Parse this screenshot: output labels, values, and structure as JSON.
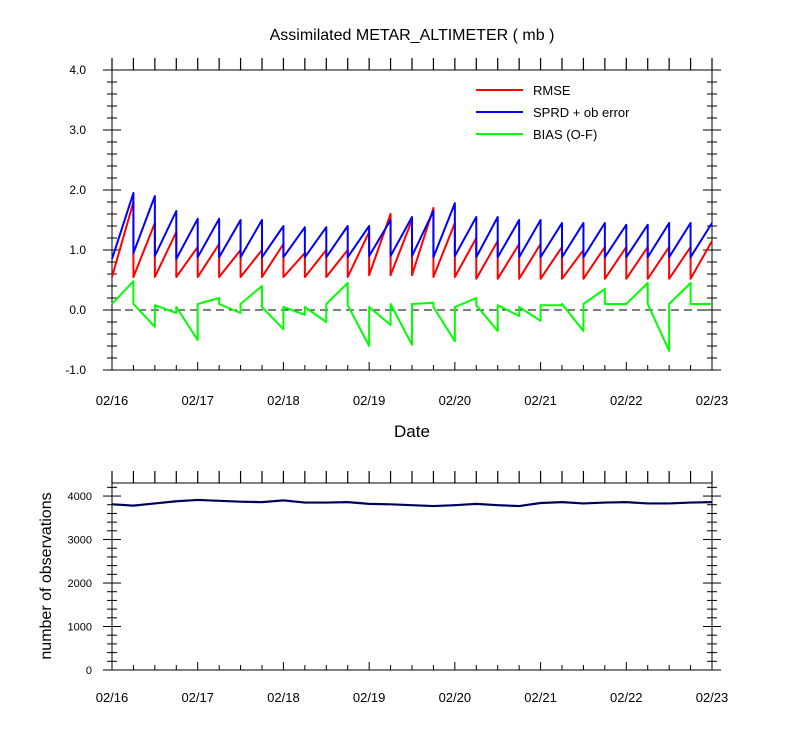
{
  "colors": {
    "rmse": "#ff0000",
    "sprd": "#0000ff",
    "bias": "#00ff00",
    "count": "#000080"
  },
  "chart_data": [
    {
      "type": "line",
      "title": "Assimilated METAR_ALTIMETER ( mb )",
      "xlabel": "Date",
      "ylabel": "",
      "x_tick_labels": [
        "02/16",
        "02/17",
        "02/18",
        "02/19",
        "02/20",
        "02/21",
        "02/22",
        "02/23"
      ],
      "xlim": [
        "2008-02-16",
        "2008-02-23"
      ],
      "ylim": [
        -1.0,
        4.0
      ],
      "y_tick_labels": [
        "-1.0",
        "0.0",
        "1.0",
        "2.0",
        "3.0",
        "4.0"
      ],
      "y_ticks": [
        -1,
        0,
        1,
        2,
        3,
        4
      ],
      "grid": false,
      "legend_position": "top-right",
      "zero_reference_line": "dashed",
      "cycle_times": [
        "2008-02-16T00:00",
        "2008-02-16T06:00",
        "2008-02-16T12:00",
        "2008-02-16T18:00",
        "2008-02-17T00:00",
        "2008-02-17T06:00",
        "2008-02-17T12:00",
        "2008-02-17T18:00",
        "2008-02-18T00:00",
        "2008-02-18T06:00",
        "2008-02-18T12:00",
        "2008-02-18T18:00",
        "2008-02-19T00:00",
        "2008-02-19T06:00",
        "2008-02-19T12:00",
        "2008-02-19T18:00",
        "2008-02-20T00:00",
        "2008-02-20T06:00",
        "2008-02-20T12:00",
        "2008-02-20T18:00",
        "2008-02-21T00:00",
        "2008-02-21T06:00",
        "2008-02-21T12:00",
        "2008-02-21T18:00",
        "2008-02-22T00:00",
        "2008-02-22T06:00",
        "2008-02-22T12:00",
        "2008-02-22T18:00"
      ],
      "series": [
        {
          "name": "RMSE",
          "color": "#ff0000",
          "cycle_start": [
            0.55,
            0.55,
            0.55,
            0.55,
            0.55,
            0.55,
            0.55,
            0.55,
            0.55,
            0.55,
            0.55,
            0.55,
            0.58,
            0.58,
            0.58,
            0.55,
            0.55,
            0.52,
            0.52,
            0.52,
            0.52,
            0.52,
            0.52,
            0.52,
            0.52,
            0.52,
            0.52,
            0.52
          ],
          "cycle_end": [
            1.8,
            1.45,
            1.3,
            1.05,
            1.1,
            1.0,
            1.0,
            1.1,
            0.95,
            1.0,
            1.0,
            1.3,
            1.6,
            1.5,
            1.7,
            1.45,
            1.2,
            1.15,
            1.1,
            1.1,
            1.05,
            1.0,
            1.05,
            1.05,
            1.05,
            1.05,
            1.05,
            1.15
          ]
        },
        {
          "name": "SPRD + ob error",
          "color": "#0000ff",
          "cycle_start": [
            0.85,
            0.95,
            0.9,
            0.85,
            0.88,
            0.88,
            0.88,
            0.88,
            0.88,
            0.88,
            0.88,
            0.88,
            0.9,
            0.9,
            0.9,
            0.88,
            0.9,
            0.88,
            0.88,
            0.88,
            0.88,
            0.88,
            0.88,
            0.88,
            0.88,
            0.88,
            0.88,
            0.88
          ],
          "cycle_end": [
            1.95,
            1.9,
            1.65,
            1.52,
            1.52,
            1.5,
            1.5,
            1.4,
            1.38,
            1.38,
            1.4,
            1.4,
            1.5,
            1.55,
            1.65,
            1.78,
            1.55,
            1.55,
            1.5,
            1.5,
            1.45,
            1.45,
            1.45,
            1.42,
            1.42,
            1.45,
            1.45,
            1.45
          ]
        },
        {
          "name": "BIAS (O-F)",
          "color": "#00ff00",
          "cycle_start": [
            0.1,
            0.1,
            0.08,
            0.05,
            0.1,
            0.1,
            0.1,
            0.05,
            0.05,
            0.05,
            0.1,
            0.08,
            0.05,
            0.1,
            0.1,
            0.05,
            0.05,
            0.08,
            0.08,
            0.05,
            0.08,
            0.1,
            0.1,
            0.1,
            0.1,
            0.1,
            0.1,
            0.1
          ],
          "cycle_end": [
            0.48,
            -0.28,
            -0.05,
            -0.5,
            0.2,
            -0.05,
            0.4,
            -0.32,
            -0.08,
            -0.2,
            0.45,
            -0.6,
            -0.25,
            -0.58,
            0.12,
            -0.52,
            0.2,
            -0.35,
            -0.1,
            -0.18,
            0.08,
            -0.35,
            0.35,
            0.1,
            0.45,
            -0.68,
            0.45,
            0.1
          ]
        }
      ]
    },
    {
      "type": "line",
      "title": "",
      "xlabel": "",
      "ylabel": "number of observations",
      "x_tick_labels": [
        "02/16",
        "02/17",
        "02/18",
        "02/19",
        "02/20",
        "02/21",
        "02/22",
        "02/23"
      ],
      "xlim": [
        "2008-02-16",
        "2008-02-23"
      ],
      "ylim": [
        0,
        4300
      ],
      "y_tick_labels": [
        "0",
        "1000",
        "2000",
        "3000",
        "4000"
      ],
      "y_ticks": [
        0,
        1000,
        2000,
        3000,
        4000
      ],
      "grid": false,
      "series": [
        {
          "color": "#000080",
          "x": [
            "2008-02-16T00:00",
            "2008-02-16T06:00",
            "2008-02-16T12:00",
            "2008-02-16T18:00",
            "2008-02-17T00:00",
            "2008-02-17T06:00",
            "2008-02-17T12:00",
            "2008-02-17T18:00",
            "2008-02-18T00:00",
            "2008-02-18T06:00",
            "2008-02-18T12:00",
            "2008-02-18T18:00",
            "2008-02-19T00:00",
            "2008-02-19T06:00",
            "2008-02-19T12:00",
            "2008-02-19T18:00",
            "2008-02-20T00:00",
            "2008-02-20T06:00",
            "2008-02-20T12:00",
            "2008-02-20T18:00",
            "2008-02-21T00:00",
            "2008-02-21T06:00",
            "2008-02-21T12:00",
            "2008-02-21T18:00",
            "2008-02-22T00:00",
            "2008-02-22T06:00",
            "2008-02-22T12:00",
            "2008-02-22T18:00",
            "2008-02-23T00:00"
          ],
          "values": [
            3810,
            3780,
            3830,
            3880,
            3910,
            3890,
            3870,
            3860,
            3900,
            3850,
            3850,
            3860,
            3820,
            3810,
            3790,
            3770,
            3790,
            3820,
            3790,
            3770,
            3840,
            3860,
            3830,
            3850,
            3860,
            3830,
            3830,
            3850,
            3860
          ]
        }
      ]
    }
  ]
}
